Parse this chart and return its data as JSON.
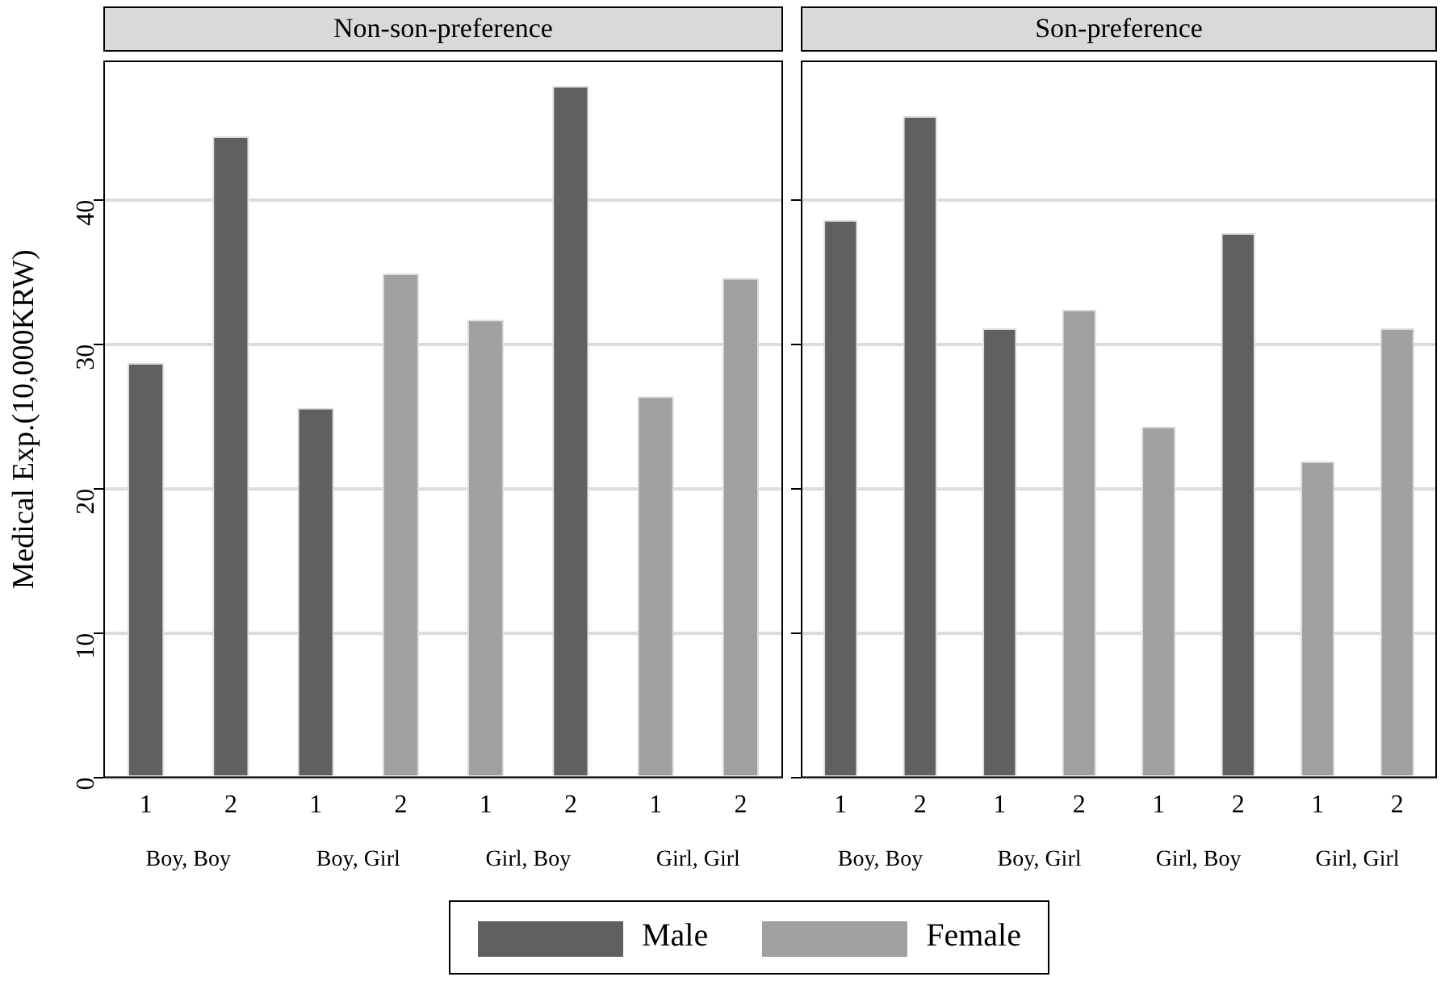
{
  "chart_data": [
    {
      "type": "bar",
      "title": "Non-son-preference",
      "ylabel": "Medical Exp.(10,000KRW)",
      "categories": [
        "1",
        "2",
        "1",
        "2",
        "1",
        "2",
        "1",
        "2"
      ],
      "series": [
        {
          "name": "Male",
          "color": "#606060",
          "values": [
            28.7,
            44.4,
            25.6,
            null,
            null,
            47.9,
            null,
            null
          ]
        },
        {
          "name": "Female",
          "color": "#a0a0a0",
          "values": [
            null,
            null,
            null,
            34.9,
            31.7,
            null,
            26.4,
            34.6
          ]
        }
      ],
      "annotations": [
        "Boy, Boy",
        "Boy, Girl",
        "Girl, Boy",
        "Girl, Girl"
      ],
      "ylim": [
        0,
        49.6
      ],
      "yticks": [
        0,
        10,
        20,
        30,
        40
      ],
      "grid": "y",
      "legend": "bottom"
    },
    {
      "type": "bar",
      "title": "Son-preference",
      "categories": [
        "1",
        "2",
        "1",
        "2",
        "1",
        "2",
        "1",
        "2"
      ],
      "series": [
        {
          "color": "#606060",
          "values": [
            38.6,
            45.8,
            31.1,
            null,
            null,
            37.7,
            null,
            null
          ]
        },
        {
          "color": "#a0a0a0",
          "values": [
            null,
            null,
            null,
            32.4,
            24.3,
            null,
            21.9,
            31.1
          ]
        }
      ],
      "annotations": [
        "Boy, Boy",
        "Boy, Girl",
        "Girl, Boy",
        "Girl, Girl"
      ],
      "ylim": [
        0,
        49.6
      ],
      "yticks": [
        0,
        10,
        20,
        30,
        40
      ],
      "grid": "y",
      "tick_labels": "x"
    }
  ]
}
